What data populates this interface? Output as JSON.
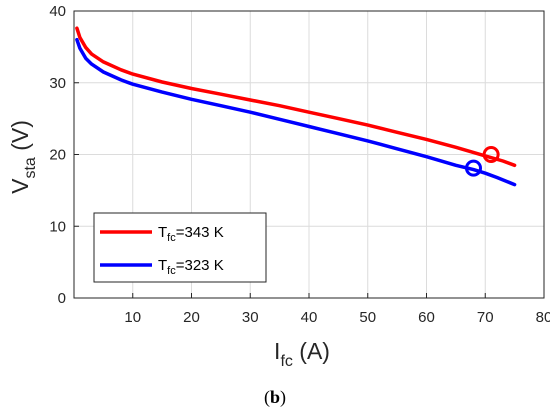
{
  "chart_data": {
    "type": "line",
    "xlabel": {
      "main": "I",
      "sub": "fc",
      "unit": " (A)"
    },
    "ylabel": {
      "main": "V",
      "sub": "sta",
      "unit": " (V)"
    },
    "xlim": [
      0,
      80
    ],
    "ylim": [
      0,
      40
    ],
    "xticks": [
      10,
      20,
      30,
      40,
      50,
      60,
      70,
      80
    ],
    "yticks": [
      0,
      10,
      20,
      30,
      40
    ],
    "grid": true,
    "legend_position": "bottom-left",
    "series": [
      {
        "name": "T_fc=343 K",
        "label": {
          "main": "T",
          "sub": "fc",
          "rest": "=343 K"
        },
        "color": "#ff0000",
        "x": [
          0.5,
          1,
          2,
          3,
          5,
          8,
          10,
          15,
          20,
          25,
          30,
          35,
          40,
          45,
          50,
          55,
          60,
          65,
          70,
          73,
          75
        ],
        "y": [
          37.6,
          36.3,
          34.9,
          34.0,
          32.9,
          31.8,
          31.2,
          30.1,
          29.2,
          28.4,
          27.6,
          26.8,
          25.9,
          25.0,
          24.1,
          23.1,
          22.1,
          21.0,
          19.8,
          19.1,
          18.5
        ],
        "marker": {
          "x": 71,
          "y": 20.0
        }
      },
      {
        "name": "T_fc=323 K",
        "label": {
          "main": "T",
          "sub": "fc",
          "rest": "=323 K"
        },
        "color": "#0000ff",
        "x": [
          0.5,
          1,
          2,
          3,
          5,
          8,
          10,
          15,
          20,
          25,
          30,
          35,
          40,
          45,
          50,
          55,
          60,
          65,
          68,
          70,
          72,
          75
        ],
        "y": [
          36.0,
          34.8,
          33.4,
          32.6,
          31.5,
          30.4,
          29.8,
          28.7,
          27.7,
          26.8,
          25.9,
          24.9,
          23.9,
          22.9,
          21.9,
          20.8,
          19.7,
          18.5,
          17.9,
          17.4,
          16.8,
          15.8
        ],
        "marker": {
          "x": 68,
          "y": 18.1
        }
      }
    ]
  },
  "caption": "(b)"
}
